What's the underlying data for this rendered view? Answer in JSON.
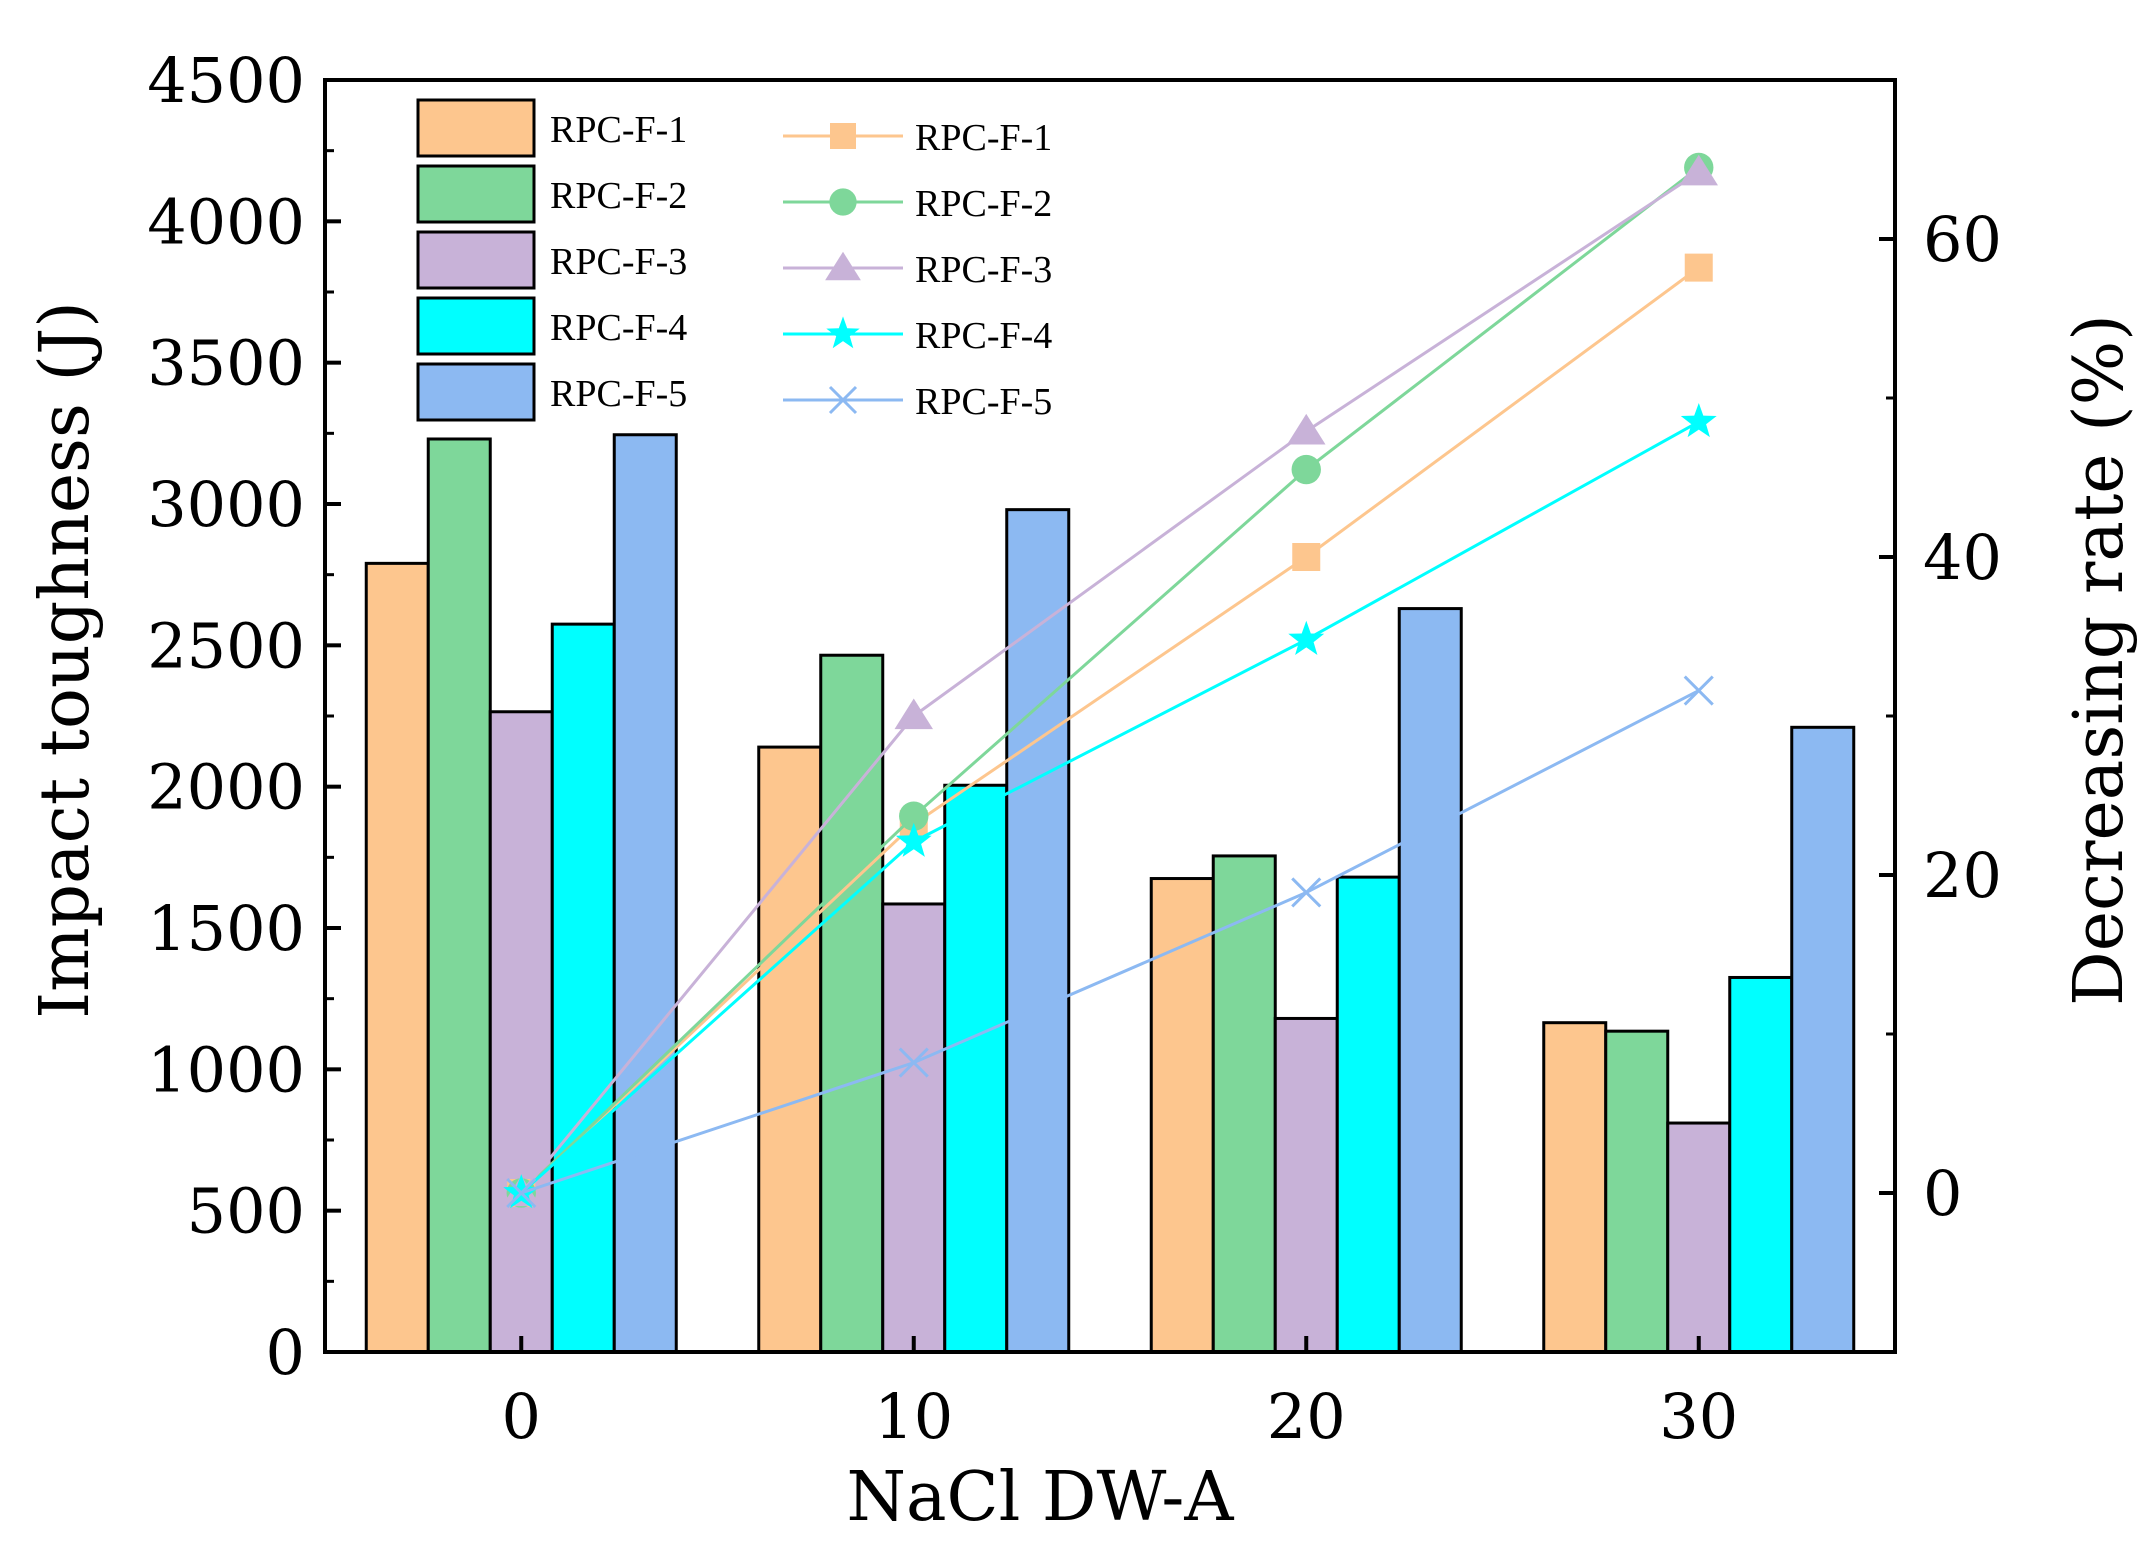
{
  "chart_data": {
    "type": "bar",
    "title": "",
    "xlabel": "NaCl DW-A",
    "ylabel": "Impact toughness (J)",
    "y2label": "Decreasing rate (%)",
    "categories": [
      "0",
      "10",
      "20",
      "30"
    ],
    "ylim": [
      0,
      4500
    ],
    "yticks": [
      "0",
      "500",
      "1000",
      "1500",
      "2000",
      "2500",
      "3000",
      "3500",
      "4000",
      "4500"
    ],
    "y2lim": [
      -10,
      70
    ],
    "y2ticks": [
      "0",
      "20",
      "40",
      "60"
    ],
    "grid": false,
    "legend_position": "top-left",
    "bar_series": [
      {
        "name": "RPC-F-1",
        "color": "#FDC68E",
        "values": [
          2790,
          2140,
          1675,
          1165
        ]
      },
      {
        "name": "RPC-F-2",
        "color": "#7ED79A",
        "values": [
          3230,
          2465,
          1755,
          1135
        ]
      },
      {
        "name": "RPC-F-3",
        "color": "#C8B2D8",
        "values": [
          2265,
          1585,
          1180,
          810
        ]
      },
      {
        "name": "RPC-F-4",
        "color": "#00FFFF",
        "values": [
          2575,
          2005,
          1680,
          1325
        ]
      },
      {
        "name": "RPC-F-5",
        "color": "#8CB9F2",
        "values": [
          3245,
          2980,
          2630,
          2210
        ]
      }
    ],
    "line_series": [
      {
        "name": "RPC-F-1",
        "color": "#FDC68E",
        "marker": "square",
        "values": [
          0,
          23.2,
          40,
          58.2
        ]
      },
      {
        "name": "RPC-F-2",
        "color": "#7ED79A",
        "marker": "circle",
        "values": [
          0,
          23.7,
          45.5,
          64.5
        ]
      },
      {
        "name": "RPC-F-3",
        "color": "#C8B2D8",
        "marker": "triangle",
        "values": [
          0,
          30,
          47.9,
          64.2
        ]
      },
      {
        "name": "RPC-F-4",
        "color": "#00FFFF",
        "marker": "star",
        "values": [
          0,
          22.1,
          34.8,
          48.5
        ]
      },
      {
        "name": "RPC-F-5",
        "color": "#8CB9F2",
        "marker": "x",
        "values": [
          0,
          8.2,
          18.9,
          31.6
        ]
      }
    ]
  }
}
